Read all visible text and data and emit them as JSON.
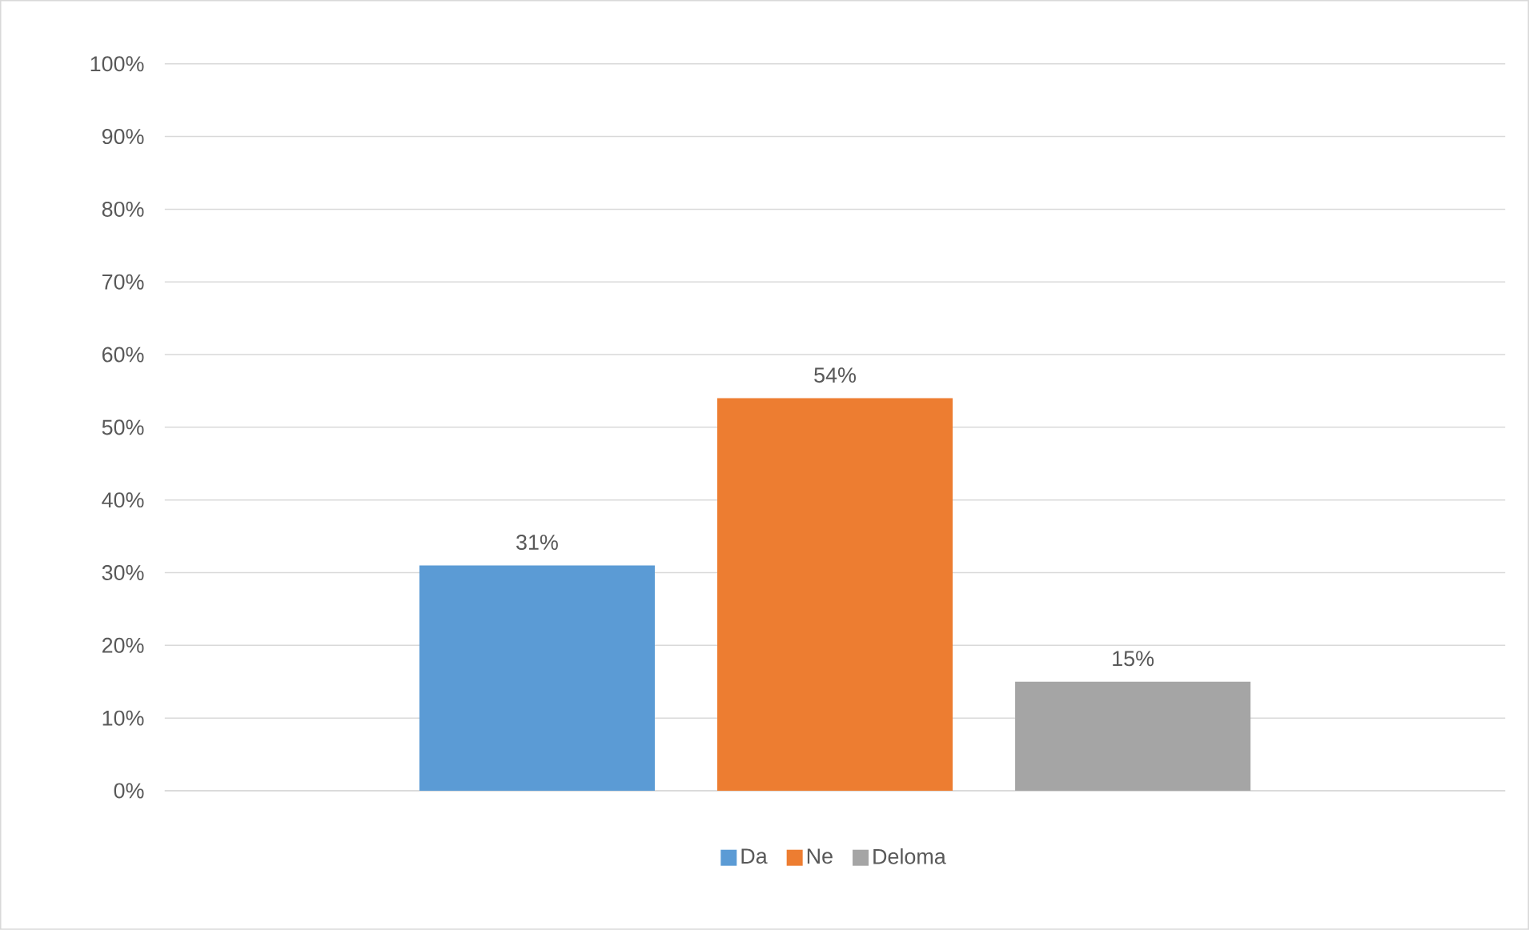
{
  "chart_data": {
    "type": "bar",
    "categories": [
      null
    ],
    "series": [
      {
        "name": "Da",
        "color": "#5b9bd5",
        "values": [
          31
        ],
        "value_labels": [
          "31%"
        ]
      },
      {
        "name": "Ne",
        "color": "#ed7d31",
        "values": [
          54
        ],
        "value_labels": [
          "54%"
        ]
      },
      {
        "name": "Deloma",
        "color": "#a5a5a5",
        "values": [
          15
        ],
        "value_labels": [
          "15%"
        ]
      }
    ],
    "ylim": [
      0,
      100
    ],
    "yticks": [
      {
        "value": 0,
        "label": "0%"
      },
      {
        "value": 10,
        "label": "10%"
      },
      {
        "value": 20,
        "label": "20%"
      },
      {
        "value": 30,
        "label": "30%"
      },
      {
        "value": 40,
        "label": "40%"
      },
      {
        "value": 50,
        "label": "50%"
      },
      {
        "value": 60,
        "label": "60%"
      },
      {
        "value": 70,
        "label": "70%"
      },
      {
        "value": 80,
        "label": "80%"
      },
      {
        "value": 90,
        "label": "90%"
      },
      {
        "value": 100,
        "label": "100%"
      }
    ],
    "grid": "y",
    "legend": "bottom"
  }
}
